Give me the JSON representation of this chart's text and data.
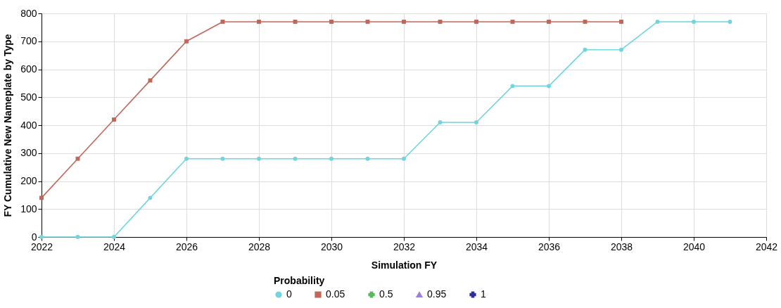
{
  "chart_data": {
    "type": "line",
    "xlabel": "Simulation FY",
    "ylabel": "FY Cumulative New Nameplate by Type",
    "legend_title": "Probability",
    "legend": "bottom",
    "grid": true,
    "x": [
      2022,
      2023,
      2024,
      2025,
      2026,
      2027,
      2028,
      2029,
      2030,
      2031,
      2032,
      2033,
      2034,
      2035,
      2036,
      2037,
      2038,
      2039,
      2040,
      2041
    ],
    "xlim": [
      2022,
      2042
    ],
    "xticks": [
      2022,
      2024,
      2026,
      2028,
      2030,
      2032,
      2034,
      2036,
      2038,
      2040,
      2042
    ],
    "ylim": [
      0,
      800
    ],
    "yticks": [
      0,
      100,
      200,
      300,
      400,
      500,
      600,
      700,
      800
    ],
    "series": [
      {
        "name": "0",
        "color": "#72d4dd",
        "marker": "circle",
        "values": [
          0,
          0,
          0,
          140,
          280,
          280,
          280,
          280,
          280,
          280,
          280,
          410,
          410,
          540,
          540,
          670,
          670,
          770,
          770,
          770
        ]
      },
      {
        "name": "0.05",
        "color": "#c0675a",
        "marker": "square",
        "values": [
          140,
          280,
          420,
          560,
          700,
          770,
          770,
          770,
          770,
          770,
          770,
          770,
          770,
          770,
          770,
          770,
          770,
          null,
          null,
          null
        ]
      },
      {
        "name": "0.5",
        "color": "#5cb85c",
        "marker": "cross",
        "values": [
          null,
          null,
          null,
          null,
          null,
          null,
          null,
          null,
          null,
          null,
          null,
          null,
          null,
          null,
          null,
          null,
          null,
          null,
          null,
          null
        ]
      },
      {
        "name": "0.95",
        "color": "#9b7fe0",
        "marker": "triangle",
        "values": [
          null,
          null,
          null,
          null,
          null,
          null,
          null,
          null,
          null,
          null,
          null,
          null,
          null,
          null,
          null,
          null,
          null,
          null,
          null,
          null
        ]
      },
      {
        "name": "1",
        "color": "#2e2e9e",
        "marker": "cross",
        "values": [
          null,
          null,
          null,
          null,
          null,
          null,
          null,
          null,
          null,
          null,
          null,
          null,
          null,
          null,
          null,
          null,
          null,
          null,
          null,
          null
        ]
      }
    ]
  }
}
